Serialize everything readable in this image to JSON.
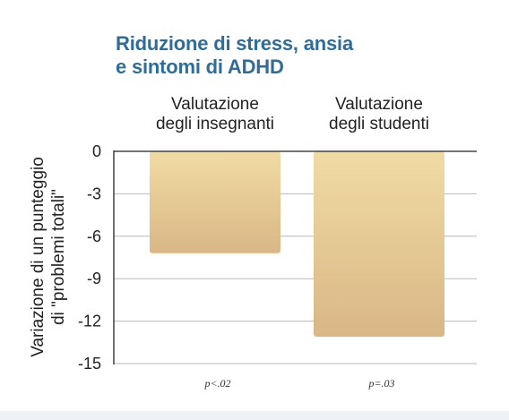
{
  "chart_data": {
    "type": "bar",
    "title_lines": [
      "Riduzione di stress, ansia",
      "e sintomi di ADHD"
    ],
    "categories": [
      [
        "Valutazione",
        "degli insegnanti"
      ],
      [
        "Valutazione",
        "degli studenti"
      ]
    ],
    "values": [
      -7.2,
      -13.1
    ],
    "ylabel_lines": [
      "Variazione di un punteggio",
      "di \"problemi totali\""
    ],
    "yticks": [
      0,
      -3,
      -6,
      -9,
      -12,
      -15
    ],
    "ytick_labels": [
      "0",
      "-3",
      "-6",
      "-9",
      "-12",
      "-15"
    ],
    "ylim": [
      -15,
      0
    ],
    "annotations": [
      "p<.02",
      "p=.03"
    ],
    "grid": true,
    "colors": {
      "title": "#2f6d99",
      "bar_top": "#f1dba4",
      "bar_bottom": "#d9b786",
      "grid": "#b9b9b9",
      "axis": "#222222"
    }
  }
}
